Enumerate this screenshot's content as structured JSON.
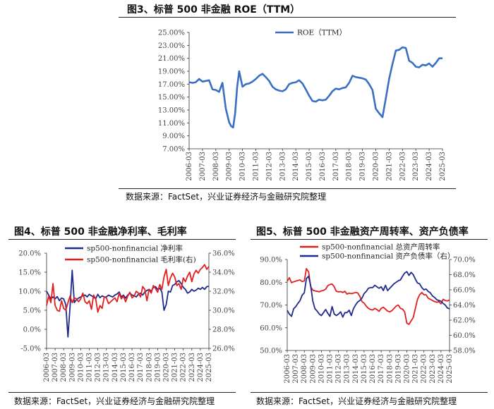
{
  "figures": {
    "fig3": {
      "title": "图3、标普 500 非金融 ROE（TTM）",
      "source": "数据来源：FactSet，兴业证券经济与金融研究院整理"
    },
    "fig4": {
      "title": "图4、标普 500 非金融净利率、毛利率",
      "source": "数据来源：FactSet，兴业证券经济与金融研究院整理"
    },
    "fig5": {
      "title": "图5、标普 500 非金融资产周转率、资产负债率",
      "source": "数据来源：FactSet，兴业证券经济与金融研究院整理"
    }
  },
  "colors": {
    "blue": "#3a6fc4",
    "navy": "#1f2a8c",
    "red": "#e02020",
    "tick": "#444444"
  },
  "chart_data": [
    {
      "id": "fig3",
      "type": "line",
      "x_range": [
        2006.0,
        2025.0
      ],
      "x_ticks": [
        "2006-03",
        "2007-03",
        "2008-03",
        "2009-03",
        "2010-03",
        "2011-03",
        "2012-03",
        "2013-03",
        "2014-03",
        "2015-03",
        "2016-03",
        "2017-03",
        "2018-03",
        "2019-03",
        "2020-03",
        "2021-03",
        "2022-03",
        "2023-03",
        "2024-03",
        "2025-03"
      ],
      "y_ticks": [
        "7.00%",
        "9.00%",
        "11.00%",
        "13.00%",
        "15.00%",
        "17.00%",
        "19.00%",
        "21.00%",
        "23.00%",
        "25.00%"
      ],
      "ylim": [
        7,
        25
      ],
      "legend_position": "top",
      "series": [
        {
          "name": "ROE（TTM）",
          "x": [
            2006.0,
            2006.25,
            2006.5,
            2006.75,
            2007.0,
            2007.25,
            2007.5,
            2007.75,
            2008.0,
            2008.25,
            2008.5,
            2008.75,
            2009.0,
            2009.15,
            2009.3,
            2009.45,
            2009.6,
            2009.75,
            2010.0,
            2010.25,
            2010.5,
            2010.75,
            2011.0,
            2011.25,
            2011.5,
            2011.75,
            2012.0,
            2012.25,
            2012.5,
            2012.75,
            2013.0,
            2013.25,
            2013.5,
            2013.75,
            2014.0,
            2014.25,
            2014.5,
            2014.75,
            2015.0,
            2015.25,
            2015.5,
            2015.75,
            2016.0,
            2016.25,
            2016.5,
            2016.75,
            2017.0,
            2017.25,
            2017.5,
            2017.75,
            2018.0,
            2018.25,
            2018.5,
            2018.75,
            2019.0,
            2019.25,
            2019.5,
            2019.75,
            2020.0,
            2020.25,
            2020.5,
            2020.75,
            2021.0,
            2021.25,
            2021.5,
            2021.75,
            2022.0,
            2022.25,
            2022.5,
            2022.75,
            2023.0,
            2023.25,
            2023.5,
            2023.75,
            2024.0,
            2024.25,
            2024.5,
            2024.75,
            2025.0
          ],
          "values": [
            17.3,
            17.2,
            17.3,
            17.8,
            17.4,
            17.5,
            17.6,
            16.2,
            16.1,
            15.8,
            17.2,
            13.2,
            11.1,
            10.5,
            10.3,
            12.5,
            16.5,
            19.0,
            16.6,
            17.0,
            17.1,
            17.4,
            17.8,
            18.3,
            18.6,
            18.1,
            17.5,
            16.6,
            16.2,
            16.0,
            15.9,
            16.2,
            17.0,
            17.2,
            17.3,
            17.6,
            17.1,
            16.2,
            15.2,
            14.4,
            14.3,
            14.6,
            14.5,
            14.6,
            15.2,
            15.9,
            16.3,
            16.2,
            16.4,
            16.5,
            17.2,
            18.3,
            18.1,
            18.0,
            17.9,
            17.7,
            17.0,
            16.1,
            13.2,
            12.5,
            11.9,
            14.8,
            17.8,
            20.1,
            22.2,
            22.3,
            22.7,
            22.6,
            20.6,
            20.3,
            19.7,
            19.6,
            20.0,
            19.9,
            20.2,
            19.7,
            20.3,
            21.0,
            21.0
          ]
        }
      ]
    },
    {
      "id": "fig4",
      "type": "line",
      "x_range": [
        2006.0,
        2025.0
      ],
      "x_ticks": [
        "2006-03",
        "2007-03",
        "2008-03",
        "2009-03",
        "2010-03",
        "2011-03",
        "2012-03",
        "2013-03",
        "2014-03",
        "2015-03",
        "2016-03",
        "2017-03",
        "2018-03",
        "2019-03",
        "2020-03",
        "2021-03",
        "2022-03",
        "2023-03",
        "2024-03",
        "2025-03"
      ],
      "y_ticks_left": [
        "-5.0%",
        "0.0%",
        "5.0%",
        "10.0%",
        "15.0%",
        "20.0%"
      ],
      "ylim_left": [
        -5,
        20
      ],
      "y_ticks_right": [
        "26.0%",
        "28.0%",
        "30.0%",
        "32.0%",
        "34.0%",
        "36.0%"
      ],
      "ylim_right": [
        26,
        36
      ],
      "legend_position": "top",
      "series": [
        {
          "name": "sp500-nonfinancial 净利率",
          "axis": "left",
          "x": [
            2006.0,
            2006.25,
            2006.5,
            2006.75,
            2007.0,
            2007.25,
            2007.5,
            2007.75,
            2008.0,
            2008.25,
            2008.5,
            2008.75,
            2009.0,
            2009.25,
            2009.5,
            2009.75,
            2010.0,
            2010.25,
            2010.5,
            2010.75,
            2011.0,
            2011.25,
            2011.5,
            2011.75,
            2012.0,
            2012.25,
            2012.5,
            2012.75,
            2013.0,
            2013.25,
            2013.5,
            2013.75,
            2014.0,
            2014.25,
            2014.5,
            2014.75,
            2015.0,
            2015.25,
            2015.5,
            2015.75,
            2016.0,
            2016.25,
            2016.5,
            2016.75,
            2017.0,
            2017.25,
            2017.5,
            2017.75,
            2018.0,
            2018.25,
            2018.5,
            2018.75,
            2019.0,
            2019.25,
            2019.5,
            2019.75,
            2020.0,
            2020.25,
            2020.5,
            2020.75,
            2021.0,
            2021.25,
            2021.5,
            2021.75,
            2022.0,
            2022.25,
            2022.5,
            2022.75,
            2023.0,
            2023.25,
            2023.5,
            2023.75,
            2024.0,
            2024.25,
            2024.5,
            2024.75,
            2025.0
          ],
          "values": [
            10.0,
            9.0,
            8.0,
            8.5,
            8.0,
            8.6,
            7.5,
            8.2,
            8.0,
            6.5,
            -2.0,
            6.0,
            15.5,
            7.0,
            7.8,
            8.2,
            8.5,
            8.8,
            9.0,
            8.5,
            9.2,
            8.8,
            8.5,
            8.0,
            9.2,
            8.3,
            8.8,
            8.5,
            8.5,
            9.0,
            8.7,
            8.5,
            9.0,
            9.3,
            9.8,
            8.5,
            9.0,
            8.2,
            9.0,
            9.5,
            9.0,
            8.8,
            8.5,
            9.2,
            9.5,
            9.0,
            9.8,
            10.2,
            10.5,
            10.0,
            11.0,
            11.2,
            10.5,
            10.8,
            9.8,
            5.0,
            6.5,
            10.0,
            9.8,
            11.5,
            11.8,
            12.5,
            12.8,
            12.0,
            11.0,
            10.5,
            9.5,
            9.8,
            10.5,
            10.0,
            10.3,
            10.8,
            10.5,
            11.0,
            10.5,
            11.2,
            11.3
          ]
        },
        {
          "name": "sp500-nonfinancial 毛利率(右)",
          "axis": "right",
          "x": [
            2006.0,
            2006.25,
            2006.5,
            2006.75,
            2007.0,
            2007.25,
            2007.5,
            2007.75,
            2008.0,
            2008.25,
            2008.5,
            2008.75,
            2009.0,
            2009.25,
            2009.5,
            2009.75,
            2010.0,
            2010.25,
            2010.5,
            2010.75,
            2011.0,
            2011.25,
            2011.5,
            2011.75,
            2012.0,
            2012.25,
            2012.5,
            2012.75,
            2013.0,
            2013.25,
            2013.5,
            2013.75,
            2014.0,
            2014.25,
            2014.5,
            2014.75,
            2015.0,
            2015.25,
            2015.5,
            2015.75,
            2016.0,
            2016.25,
            2016.5,
            2016.75,
            2017.0,
            2017.25,
            2017.5,
            2017.75,
            2018.0,
            2018.25,
            2018.5,
            2018.75,
            2019.0,
            2019.25,
            2019.5,
            2019.75,
            2020.0,
            2020.25,
            2020.5,
            2020.75,
            2021.0,
            2021.25,
            2021.5,
            2021.75,
            2022.0,
            2022.25,
            2022.5,
            2022.75,
            2023.0,
            2023.25,
            2023.5,
            2023.75,
            2024.0,
            2024.25,
            2024.5,
            2024.75,
            2025.0
          ],
          "values": [
            30.5,
            31.5,
            30.8,
            32.8,
            30.5,
            30.0,
            29.9,
            31.0,
            30.2,
            30.0,
            30.8,
            31.5,
            30.8,
            31.3,
            31.2,
            30.9,
            31.2,
            31.8,
            30.9,
            30.7,
            31.0,
            30.1,
            31.6,
            31.2,
            29.8,
            30.5,
            30.2,
            31.4,
            31.3,
            30.7,
            30.9,
            31.1,
            31.3,
            30.9,
            31.8,
            31.2,
            31.5,
            30.9,
            31.5,
            31.9,
            31.3,
            31.5,
            32.0,
            31.8,
            31.4,
            32.5,
            32.2,
            31.0,
            32.2,
            31.8,
            32.6,
            32.3,
            31.9,
            32.7,
            32.2,
            33.5,
            34.3,
            32.6,
            33.4,
            33.9,
            33.5,
            32.6,
            32.8,
            32.2,
            33.4,
            33.0,
            33.6,
            34.0,
            33.0,
            33.8,
            34.2,
            33.9,
            34.3,
            34.5,
            34.8,
            34.3,
            34.6
          ]
        }
      ]
    },
    {
      "id": "fig5",
      "type": "line",
      "x_range": [
        2006.0,
        2025.0
      ],
      "x_ticks": [
        "2006-03",
        "2007-03",
        "2008-03",
        "2009-03",
        "2010-03",
        "2011-03",
        "2012-03",
        "2013-03",
        "2014-03",
        "2015-03",
        "2016-03",
        "2017-03",
        "2018-03",
        "2019-03",
        "2020-03",
        "2021-03",
        "2022-03",
        "2023-03",
        "2024-03",
        "2025-03"
      ],
      "y_ticks_left": [
        "50.0%",
        "60.0%",
        "70.0%",
        "80.0%",
        "90.0%"
      ],
      "ylim_left": [
        50,
        90
      ],
      "y_ticks_right": [
        "58.0%",
        "60.0%",
        "62.0%",
        "64.0%",
        "66.0%",
        "68.0%",
        "70.0%"
      ],
      "ylim_right": [
        58,
        70
      ],
      "legend_position": "top",
      "series": [
        {
          "name": "sp500-nonfinancial 总资产周转率",
          "axis": "left",
          "x": [
            2006.0,
            2006.25,
            2006.5,
            2006.75,
            2007.0,
            2007.25,
            2007.5,
            2007.75,
            2008.0,
            2008.25,
            2008.5,
            2008.75,
            2009.0,
            2009.25,
            2009.5,
            2009.75,
            2010.0,
            2010.25,
            2010.5,
            2010.75,
            2011.0,
            2011.25,
            2011.5,
            2011.75,
            2012.0,
            2012.25,
            2012.5,
            2012.75,
            2013.0,
            2013.25,
            2013.5,
            2013.75,
            2014.0,
            2014.25,
            2014.5,
            2014.75,
            2015.0,
            2015.25,
            2015.5,
            2015.75,
            2016.0,
            2016.25,
            2016.5,
            2016.75,
            2017.0,
            2017.25,
            2017.5,
            2017.75,
            2018.0,
            2018.25,
            2018.5,
            2018.75,
            2019.0,
            2019.25,
            2019.5,
            2019.75,
            2020.0,
            2020.25,
            2020.5,
            2020.75,
            2021.0,
            2021.25,
            2021.5,
            2021.75,
            2022.0,
            2022.25,
            2022.5,
            2022.75,
            2023.0,
            2023.25,
            2023.5,
            2023.75,
            2024.0,
            2024.25,
            2024.5,
            2024.75,
            2025.0
          ],
          "values": [
            80.5,
            82.0,
            79.8,
            80.2,
            80.5,
            80.8,
            81.0,
            80.3,
            80.6,
            86.0,
            84.5,
            78.0,
            76.5,
            76.2,
            76.0,
            75.8,
            76.2,
            76.4,
            77.0,
            78.5,
            79.0,
            79.2,
            78.0,
            76.0,
            75.8,
            75.9,
            75.5,
            76.0,
            74.8,
            75.2,
            75.0,
            75.2,
            75.5,
            75.3,
            73.8,
            71.5,
            70.8,
            69.5,
            68.5,
            68.0,
            67.8,
            68.5,
            68.0,
            67.2,
            68.5,
            69.0,
            68.2,
            67.3,
            67.0,
            67.5,
            68.5,
            69.5,
            70.0,
            68.5,
            68.2,
            67.0,
            62.0,
            61.5,
            63.0,
            64.5,
            68.5,
            72.5,
            74.5,
            75.5,
            74.5,
            74.5,
            73.0,
            72.5,
            72.0,
            71.5,
            71.2,
            71.5,
            70.5,
            72.5,
            72.0,
            71.8,
            72.2
          ]
        },
        {
          "name": "sp500-nonfinancial 资产负债率（右）",
          "axis": "right",
          "x": [
            2006.0,
            2006.25,
            2006.5,
            2006.75,
            2007.0,
            2007.25,
            2007.5,
            2007.75,
            2008.0,
            2008.25,
            2008.5,
            2008.75,
            2009.0,
            2009.25,
            2009.5,
            2009.75,
            2010.0,
            2010.25,
            2010.5,
            2010.75,
            2011.0,
            2011.25,
            2011.5,
            2011.75,
            2012.0,
            2012.25,
            2012.5,
            2012.75,
            2013.0,
            2013.25,
            2013.5,
            2013.75,
            2014.0,
            2014.25,
            2014.5,
            2014.75,
            2015.0,
            2015.25,
            2015.5,
            2015.75,
            2016.0,
            2016.25,
            2016.5,
            2016.75,
            2017.0,
            2017.25,
            2017.5,
            2017.75,
            2018.0,
            2018.25,
            2018.5,
            2018.75,
            2019.0,
            2019.25,
            2019.5,
            2019.75,
            2020.0,
            2020.25,
            2020.5,
            2020.75,
            2021.0,
            2021.25,
            2021.5,
            2021.75,
            2022.0,
            2022.25,
            2022.5,
            2022.75,
            2023.0,
            2023.25,
            2023.5,
            2023.75,
            2024.0,
            2024.25,
            2024.5,
            2024.75,
            2025.0
          ],
          "values": [
            63.3,
            62.8,
            62.5,
            63.5,
            63.8,
            64.2,
            64.6,
            65.3,
            65.6,
            67.5,
            67.8,
            66.5,
            64.5,
            63.5,
            63.2,
            62.8,
            62.6,
            63.0,
            63.4,
            62.9,
            62.5,
            63.8,
            62.8,
            62.6,
            62.8,
            63.1,
            62.4,
            63.0,
            63.0,
            63.3,
            62.6,
            63.5,
            64.0,
            64.4,
            64.6,
            64.9,
            65.5,
            65.8,
            66.2,
            66.3,
            66.3,
            66.6,
            66.4,
            66.2,
            66.4,
            65.9,
            66.6,
            65.9,
            66.2,
            66.5,
            66.8,
            67.0,
            67.2,
            67.3,
            67.8,
            68.2,
            68.4,
            67.9,
            68.3,
            68.0,
            67.4,
            66.9,
            66.8,
            66.3,
            66.0,
            66.1,
            65.8,
            65.6,
            65.2,
            65.0,
            64.7,
            64.6,
            64.5,
            64.2,
            64.0,
            63.6,
            63.5
          ]
        }
      ]
    }
  ]
}
